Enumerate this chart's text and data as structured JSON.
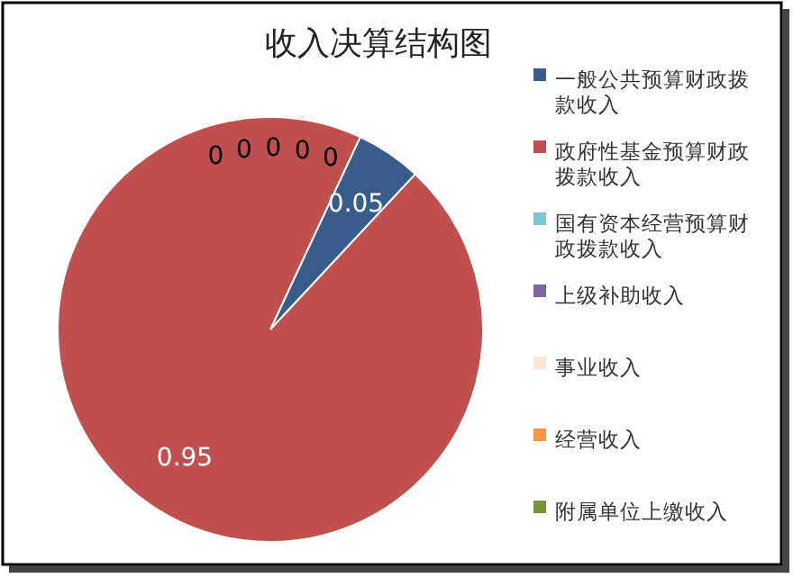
{
  "chart_data": {
    "type": "pie",
    "title": "收入决算结构图",
    "categories": [
      "一般公共预算财政拨款收入",
      "政府性基金预算财政拨款收入",
      "国有资本经营预算财政拨款收入",
      "上级补助收入",
      "事业收入",
      "经营收入",
      "附属单位上缴收入"
    ],
    "values": [
      0.05,
      0.95,
      0,
      0,
      0,
      0,
      0
    ],
    "colors": [
      "#385d8a",
      "#c0504d",
      "#7ec4d8",
      "#8064a2",
      "#fbe5d6",
      "#f79646",
      "#77933c"
    ],
    "value_labels": [
      "0.05",
      "0.95",
      "0",
      "0",
      "0",
      "0",
      "0"
    ],
    "legend": "right"
  }
}
